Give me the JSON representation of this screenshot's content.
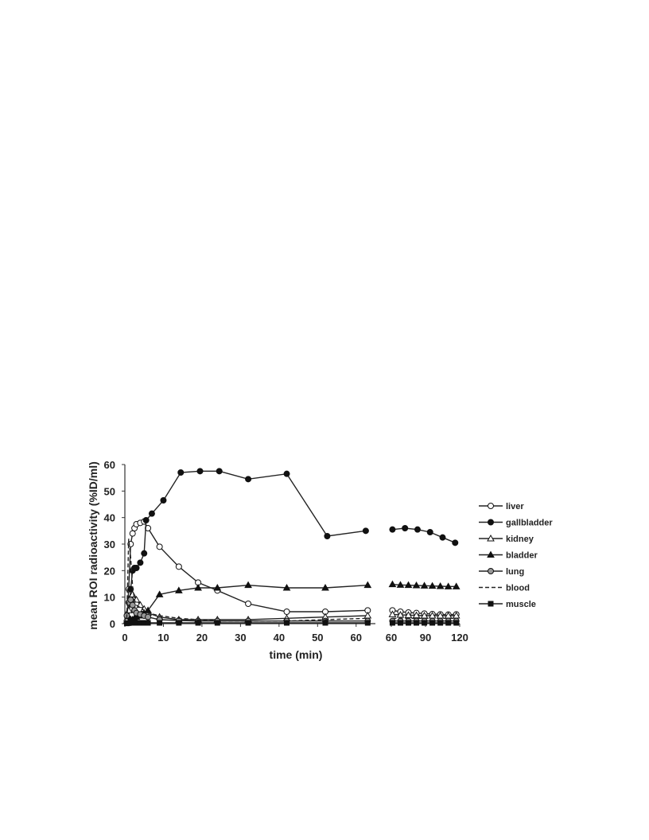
{
  "chart_data": {
    "type": "line",
    "xlabel": "time (min)",
    "ylabel": "mean ROI radioactivity (%ID/ml)",
    "ylim": [
      0,
      60
    ],
    "yticks": [
      "0",
      "10",
      "20",
      "30",
      "40",
      "50",
      "60"
    ],
    "panels": [
      {
        "xlim": [
          0,
          65
        ],
        "xticks": [
          "0",
          "10",
          "20",
          "30",
          "40",
          "50",
          "60"
        ],
        "xtick_values": [
          0,
          10,
          20,
          30,
          40,
          50,
          60
        ]
      },
      {
        "xlim": [
          60,
          120
        ],
        "xticks": [
          "60",
          "90",
          "120"
        ],
        "xtick_values": [
          60,
          90,
          120
        ]
      }
    ],
    "grid": false,
    "legend_position": "right",
    "series": [
      {
        "name": "liver",
        "marker": "circle-open",
        "dash": false,
        "segments": [
          {
            "panel": 0,
            "x": [
              0.5,
              1,
              1.5,
              2,
              2.5,
              3,
              4,
              5,
              6,
              9,
              14,
              19,
              24,
              32,
              42,
              52,
              63
            ],
            "y": [
              1,
              13,
              30,
              34,
              36,
              37.5,
              38,
              38.5,
              36,
              29,
              21.5,
              15.5,
              12.5,
              7.5,
              4.5,
              4.5,
              5
            ]
          },
          {
            "panel": 1,
            "x": [
              61,
              68,
              75,
              82,
              89,
              96,
              103,
              110,
              117
            ],
            "y": [
              5,
              4.5,
              4.2,
              4,
              3.8,
              3.6,
              3.5,
              3.4,
              3.5
            ]
          }
        ]
      },
      {
        "name": "gallbladder",
        "marker": "circle-filled",
        "dash": false,
        "segments": [
          {
            "panel": 0,
            "x": [
              1,
              1.5,
              2,
              2.5,
              3,
              4,
              5,
              5.5,
              7,
              10,
              14.5,
              19.5,
              24.5,
              32,
              42,
              52.5,
              62.5
            ],
            "y": [
              2,
              13,
              20,
              21,
              21,
              23,
              26.5,
              39,
              41.5,
              46.5,
              57,
              57.5,
              57.5,
              54.5,
              56.5,
              33,
              35
            ]
          },
          {
            "panel": 1,
            "x": [
              61,
              72,
              83,
              94,
              105,
              116
            ],
            "y": [
              35.5,
              36,
              35.5,
              34.5,
              32.5,
              30.5
            ]
          }
        ]
      },
      {
        "name": "kidney",
        "marker": "triangle-open",
        "dash": false,
        "segments": [
          {
            "panel": 0,
            "x": [
              0.5,
              1,
              1.5,
              2,
              3,
              4,
              5,
              6,
              9,
              14,
              19,
              24,
              32,
              42,
              52,
              63
            ],
            "y": [
              1,
              5,
              10,
              11,
              9,
              7,
              5.5,
              4,
              2.5,
              1.5,
              1.5,
              1.5,
              1.5,
              2,
              2.5,
              3
            ]
          },
          {
            "panel": 1,
            "x": [
              61,
              68,
              75,
              82,
              89,
              96,
              103,
              110,
              117
            ],
            "y": [
              3.5,
              3.3,
              3.2,
              3.1,
              3,
              3,
              3,
              3,
              3
            ]
          }
        ]
      },
      {
        "name": "bladder",
        "marker": "triangle-filled",
        "dash": false,
        "segments": [
          {
            "panel": 0,
            "x": [
              1,
              1.5,
              2,
              2.5,
              3,
              4,
              5,
              6,
              9,
              14,
              19,
              24,
              32,
              42,
              52,
              63
            ],
            "y": [
              0.5,
              1,
              1.5,
              2,
              2.5,
              3,
              4,
              5,
              11,
              12.5,
              13.5,
              13.5,
              14.5,
              13.5,
              13.5,
              14.5
            ]
          },
          {
            "panel": 1,
            "x": [
              61,
              68,
              75,
              82,
              89,
              96,
              103,
              110,
              117
            ],
            "y": [
              14.8,
              14.6,
              14.5,
              14.4,
              14.3,
              14.2,
              14.1,
              14,
              14
            ]
          }
        ]
      },
      {
        "name": "lung",
        "marker": "circle-gray",
        "dash": false,
        "segments": [
          {
            "panel": 0,
            "x": [
              0.5,
              1,
              1.5,
              2,
              2.5,
              3,
              4,
              5,
              6,
              9,
              14,
              19,
              24,
              32,
              42,
              52,
              63
            ],
            "y": [
              3,
              8,
              9,
              7,
              5,
              4,
              3.5,
              3,
              2.5,
              1.5,
              1.2,
              1,
              1,
              1,
              1,
              1,
              1
            ]
          },
          {
            "panel": 1,
            "x": [
              61,
              68,
              75,
              82,
              89,
              96,
              103,
              110,
              117
            ],
            "y": [
              1,
              1,
              1,
              1,
              1,
              1,
              1,
              1,
              1
            ]
          }
        ]
      },
      {
        "name": "blood",
        "marker": "none",
        "dash": true,
        "segments": [
          {
            "panel": 0,
            "x": [
              0.5,
              1,
              1.5,
              2,
              2.5,
              3,
              4,
              5,
              6,
              9,
              14,
              19,
              24,
              32,
              42,
              52,
              63
            ],
            "y": [
              2,
              32,
              25,
              14,
              9,
              7,
              6,
              5,
              4,
              3,
              2,
              1.5,
              1,
              1,
              1,
              1.5,
              2
            ]
          },
          {
            "panel": 1,
            "x": [
              61,
              75,
              90,
              105,
              117
            ],
            "y": [
              2,
              2,
              2,
              2,
              2
            ]
          }
        ]
      },
      {
        "name": "muscle",
        "marker": "square-filled",
        "dash": false,
        "segments": [
          {
            "panel": 0,
            "x": [
              0.5,
              1,
              1.5,
              2,
              3,
              4,
              5,
              6,
              9,
              14,
              19,
              24,
              32,
              42,
              52,
              63
            ],
            "y": [
              0.1,
              0.2,
              0.3,
              0.3,
              0.3,
              0.3,
              0.3,
              0.3,
              0.3,
              0.3,
              0.3,
              0.3,
              0.3,
              0.3,
              0.3,
              0.3
            ]
          },
          {
            "panel": 1,
            "x": [
              61,
              68,
              75,
              82,
              89,
              96,
              103,
              110,
              117
            ],
            "y": [
              0.3,
              0.3,
              0.3,
              0.3,
              0.3,
              0.3,
              0.3,
              0.3,
              0.3
            ]
          }
        ]
      }
    ]
  }
}
